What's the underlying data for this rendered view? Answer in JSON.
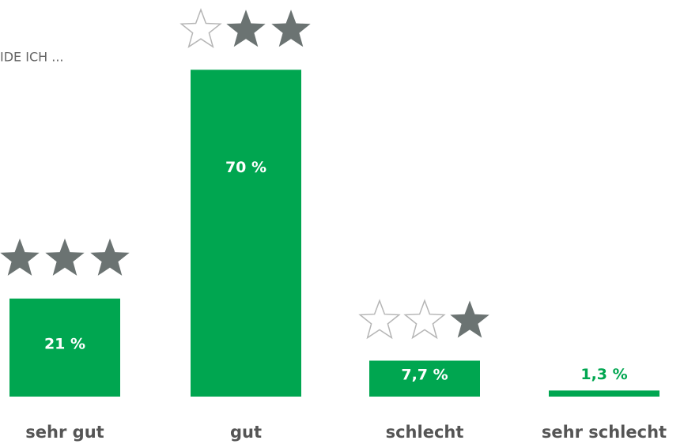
{
  "chart_data": {
    "type": "bar",
    "title": "IDE ICH ...",
    "categories": [
      "sehr gut",
      "gut",
      "schlecht",
      "sehr schlecht"
    ],
    "values": [
      21,
      70,
      7.7,
      1.3
    ],
    "value_labels": [
      "21 %",
      "70 %",
      "7,7 %",
      "1,3 %"
    ],
    "stars": [
      3,
      2,
      1,
      0
    ],
    "color": "#00a650",
    "star_color": "#6b7372",
    "star_outline_color": "#b5b5b5"
  }
}
